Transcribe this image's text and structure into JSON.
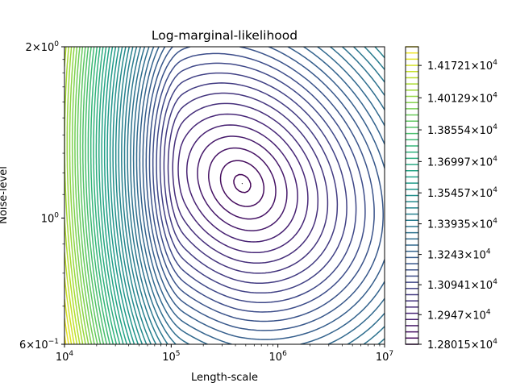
{
  "chart_data": {
    "type": "contour",
    "title": "Log-marginal-likelihood",
    "xlabel": "Length-scale",
    "ylabel": "Noise-level",
    "xscale": "log",
    "yscale": "log",
    "xlim": [
      10000,
      10000000
    ],
    "ylim": [
      0.6,
      2.0
    ],
    "x_ticks": [
      {
        "base": "10",
        "exp": "4"
      },
      {
        "base": "10",
        "exp": "5"
      },
      {
        "base": "10",
        "exp": "6"
      },
      {
        "base": "10",
        "exp": "7"
      }
    ],
    "y_ticks": [
      {
        "mant": "6",
        "exp": "−1",
        "value": 0.6
      },
      {
        "mant": "",
        "exp": "0",
        "value": 1.0
      },
      {
        "mant": "2",
        "exp": "0",
        "value": 2.0
      }
    ],
    "optimum": {
      "length_scale": 463000,
      "noise_level": 1.15
    },
    "colormap": "viridis",
    "num_levels": 49,
    "level_min": 12801.5,
    "level_max": 14263.8,
    "colorbar_ticks": [
      {
        "mant": "1.28015",
        "exp": "4",
        "value": 12801.5
      },
      {
        "mant": "1.2947",
        "exp": "4",
        "value": 12947.0
      },
      {
        "mant": "1.30941",
        "exp": "4",
        "value": 13094.1
      },
      {
        "mant": "1.3243",
        "exp": "4",
        "value": 13243.0
      },
      {
        "mant": "1.33935",
        "exp": "4",
        "value": 13393.5
      },
      {
        "mant": "1.35457",
        "exp": "4",
        "value": 13545.7
      },
      {
        "mant": "1.36997",
        "exp": "4",
        "value": 13699.7
      },
      {
        "mant": "1.38554",
        "exp": "4",
        "value": 13855.4
      },
      {
        "mant": "1.40129",
        "exp": "4",
        "value": 14012.9
      },
      {
        "mant": "1.41721",
        "exp": "4",
        "value": 14172.1
      }
    ],
    "grid": false,
    "legend": "colorbar-right"
  }
}
